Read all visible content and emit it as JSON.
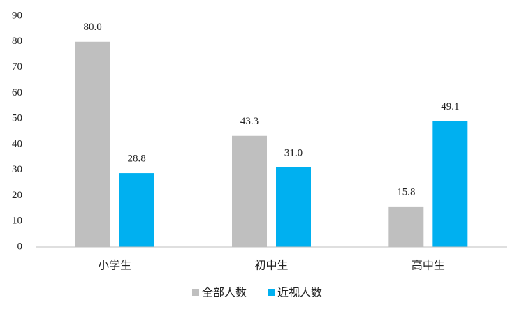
{
  "chart_data": {
    "type": "bar",
    "categories": [
      "小学生",
      "初中生",
      "高中生"
    ],
    "series": [
      {
        "name": "全部人数",
        "color": "#bfbfbf",
        "values": [
          80,
          43.3,
          15.8
        ],
        "value_labels": [
          "80.0",
          "43.3",
          "15.8"
        ]
      },
      {
        "name": "近视人数",
        "color": "#00b0f0",
        "values": [
          28.8,
          31,
          49.1
        ],
        "value_labels": [
          "28.8",
          "31.0",
          "49.1"
        ]
      }
    ],
    "ylim": [
      0,
      90
    ],
    "yticks": [
      0,
      10,
      20,
      30,
      40,
      50,
      60,
      70,
      80,
      90
    ],
    "grid": false,
    "legend": "bottom"
  }
}
